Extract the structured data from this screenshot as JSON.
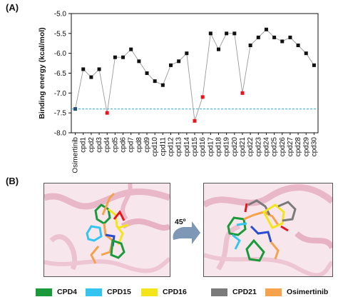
{
  "panel_a_label": "(A)",
  "panel_b_label": "(B)",
  "chart_data": {
    "type": "line",
    "ylabel": "Binding energy (kcal/mol)",
    "xlabel": "",
    "ylim": [
      -8.0,
      -5.0
    ],
    "yticks": [
      "-5.0",
      "-5.5",
      "-6.0",
      "-6.5",
      "-7.0",
      "-7.5",
      "-8.0"
    ],
    "ytick_values": [
      -5.0,
      -5.5,
      -6.0,
      -6.5,
      -7.0,
      -7.5,
      -8.0
    ],
    "categories": [
      "Osimertinib",
      "cpd1",
      "cpd2",
      "cpd3",
      "cpd4",
      "cpd5",
      "cpd6",
      "cpd7",
      "cpd8",
      "cpd9",
      "cpd10",
      "cpd11",
      "cpd12",
      "cpd13",
      "cpd14",
      "cpd15",
      "cpd16",
      "cpd17",
      "cpd18",
      "cpd19",
      "cpd20",
      "cpd21",
      "cpd22",
      "cpd23",
      "cpd24",
      "cpd25",
      "cpd26",
      "cpd27",
      "cpd28",
      "cpd29",
      "cpd30"
    ],
    "values": [
      -7.4,
      -6.4,
      -6.6,
      -6.4,
      -7.5,
      -6.1,
      -6.1,
      -5.9,
      -6.2,
      -6.5,
      -6.7,
      -6.8,
      -6.3,
      -6.2,
      -6.0,
      -7.7,
      -7.1,
      -5.5,
      -5.9,
      -5.5,
      -5.5,
      -7.0,
      -5.8,
      -5.6,
      -5.4,
      -5.6,
      -5.7,
      -5.6,
      -5.8,
      -6.0,
      -6.3
    ],
    "highlighted": [
      "Osimertinib",
      "cpd4",
      "cpd15",
      "cpd16",
      "cpd21"
    ],
    "reference_line": -7.4,
    "colors": {
      "marker": "#111111",
      "highlight_marker": "#e8141b",
      "reference_marker": "#2a4d7a",
      "connector": "#9a9a9a",
      "reference_line": "#29abe2"
    }
  },
  "rotation_label": "45º",
  "legend": [
    {
      "label": "CPD4",
      "color": "#1a9a3a"
    },
    {
      "label": "CPD15",
      "color": "#33c4f0"
    },
    {
      "label": "CPD16",
      "color": "#f3e51a"
    },
    {
      "label": "CPD21",
      "color": "#7a7a7a"
    },
    {
      "label": "Osimertinib",
      "color": "#f4a24c"
    }
  ]
}
